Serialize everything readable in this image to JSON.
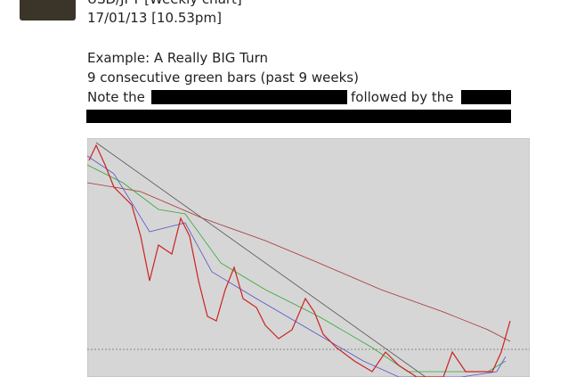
{
  "post": {
    "title": "USD/JPY [Weekly chart]",
    "date": "17/01/13 [10.53pm]",
    "lines": [
      "Example: A Really BIG Turn",
      "9 consecutive green bars (past 9 weeks)"
    ],
    "note_start": "Note the",
    "note_middle": "followed by the"
  }
}
